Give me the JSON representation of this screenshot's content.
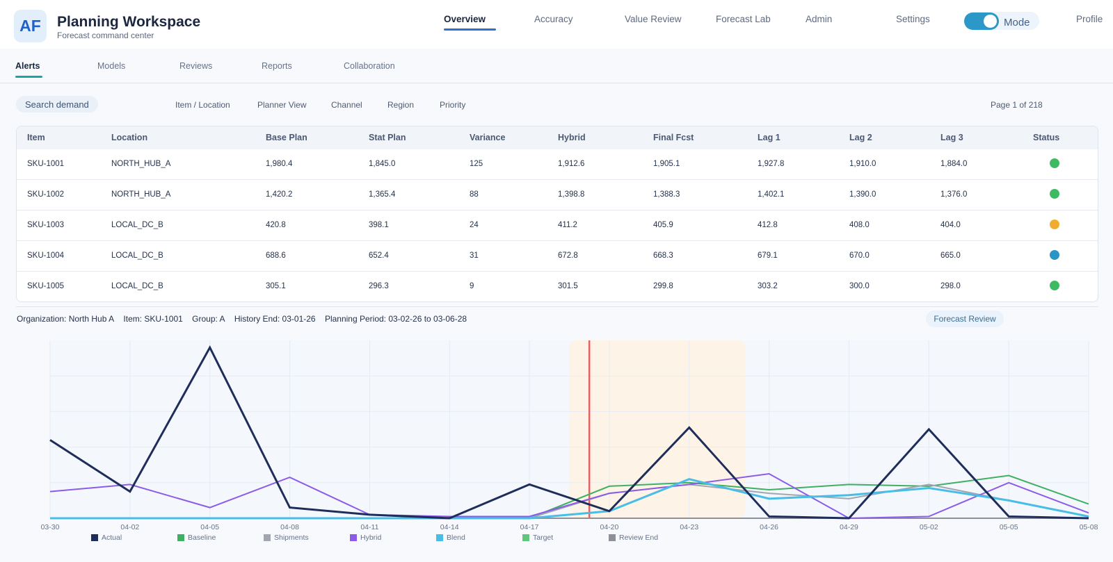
{
  "header": {
    "logo_text": "AF",
    "title": "Planning Workspace",
    "subtitle": "Forecast command center",
    "nav": [
      "Overview",
      "Accuracy",
      "Value Review",
      "Forecast Lab",
      "Admin",
      "Settings"
    ],
    "active_nav": "Overview",
    "mode_label": "Mode",
    "mode_on": true,
    "profile_label": "Profile"
  },
  "subnav": {
    "tabs": [
      "Alerts",
      "Models",
      "Reviews",
      "Reports",
      "Collaboration"
    ],
    "active": "Alerts"
  },
  "toolbar": {
    "search_placeholder": "Search demand",
    "filters": [
      "Item / Location",
      "Planner View",
      "Channel",
      "Region",
      "Priority"
    ],
    "pager": "Page 1 of 218"
  },
  "table": {
    "columns": [
      "Item",
      "Location",
      "Base Plan",
      "Stat Plan",
      "Variance",
      "Hybrid",
      "Final Fcst",
      "Lag 1",
      "Lag 2",
      "Lag 3",
      "Status"
    ],
    "rows": [
      {
        "cells": [
          "SKU-1001",
          "NORTH_HUB_A",
          "1,980.4",
          "1,845.0",
          "125",
          "1,912.6",
          "1,905.1",
          "1,927.8",
          "1,910.0",
          "1,884.0"
        ],
        "status_color": "#3dba62"
      },
      {
        "cells": [
          "SKU-1002",
          "NORTH_HUB_A",
          "1,420.2",
          "1,365.4",
          "88",
          "1,398.8",
          "1,388.3",
          "1,402.1",
          "1,390.0",
          "1,376.0"
        ],
        "status_color": "#3dba62"
      },
      {
        "cells": [
          "SKU-1003",
          "LOCAL_DC_B",
          "420.8",
          "398.1",
          "24",
          "411.2",
          "405.9",
          "412.8",
          "408.0",
          "404.0"
        ],
        "status_color": "#f0ad2c"
      },
      {
        "cells": [
          "SKU-1004",
          "LOCAL_DC_B",
          "688.6",
          "652.4",
          "31",
          "672.8",
          "668.3",
          "679.1",
          "670.0",
          "665.0"
        ],
        "status_color": "#2a94c4"
      },
      {
        "cells": [
          "SKU-1005",
          "LOCAL_DC_B",
          "305.1",
          "296.3",
          "9",
          "301.5",
          "299.8",
          "303.2",
          "300.0",
          "298.0"
        ],
        "status_color": "#3dba62"
      }
    ]
  },
  "context": {
    "organization": "Organization: North Hub A",
    "item": "Item: SKU-1001",
    "group": "Group: A",
    "history_end": "History End: 03-01-26",
    "planning_period": "Planning Period: 03-02-26 to 03-06-28",
    "review_button": "Forecast Review"
  },
  "chart_data": {
    "type": "line",
    "x_labels": [
      "03-30",
      "04-02",
      "04-05",
      "04-08",
      "04-11",
      "04-14",
      "04-17",
      "04-20",
      "04-23",
      "04-26",
      "04-29",
      "05-02",
      "05-05",
      "05-08"
    ],
    "ylim": [
      0,
      100
    ],
    "grid": true,
    "review_window": {
      "start": 6.5,
      "end": 8.7
    },
    "history_end_marker": 6.75,
    "series": [
      {
        "name": "Actual",
        "color": "#1f2d5a",
        "width": 3,
        "values": [
          44,
          15,
          96,
          6,
          2,
          0,
          19,
          4,
          51,
          1,
          0,
          50,
          1,
          0
        ]
      },
      {
        "name": "Baseline",
        "color": "#3fb063",
        "width": 2,
        "values": [
          0,
          0,
          0,
          0,
          0,
          0,
          0,
          18,
          20,
          16,
          19,
          18,
          24,
          8
        ]
      },
      {
        "name": "Shipments",
        "color": "#a1a6b0",
        "width": 2,
        "values": [
          0,
          0,
          0,
          0,
          0,
          0,
          0,
          14,
          19,
          14,
          11,
          19,
          10,
          1
        ]
      },
      {
        "name": "Hybrid",
        "color": "#8b5ce8",
        "width": 2,
        "values": [
          15,
          19,
          6,
          23,
          2,
          1,
          1,
          14,
          19,
          25,
          0,
          1,
          20,
          3
        ]
      },
      {
        "name": "Blend",
        "color": "#49bde6",
        "width": 3,
        "values": [
          0,
          0,
          0,
          0,
          0,
          0,
          0,
          4,
          22,
          11,
          13,
          17,
          10,
          1
        ]
      },
      {
        "name": "Target",
        "color": "#5ec77c",
        "width": 2,
        "values": [
          0,
          0,
          0,
          0,
          0,
          0,
          0,
          0,
          0,
          0,
          0,
          0,
          0,
          0
        ]
      },
      {
        "name": "Review End",
        "color": "#8d9099",
        "width": 2,
        "values": [
          0,
          0,
          0,
          0,
          0,
          0,
          0,
          0,
          0,
          0,
          0,
          0,
          0,
          0
        ]
      }
    ]
  }
}
